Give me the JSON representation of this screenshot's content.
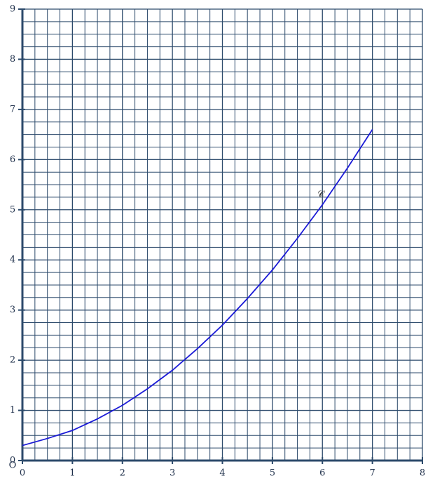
{
  "chart_data": {
    "type": "line",
    "origin_label": "O",
    "curve_label": "𝒞",
    "x": [
      0,
      0.5,
      1,
      1.5,
      2,
      2.5,
      3,
      3.5,
      4,
      4.5,
      5,
      5.5,
      6,
      6.5,
      7
    ],
    "values": [
      0.3,
      0.44,
      0.6,
      0.83,
      1.1,
      1.43,
      1.8,
      2.23,
      2.7,
      3.23,
      3.8,
      4.43,
      5.1,
      5.83,
      6.6
    ],
    "color": "#1a1ad6",
    "xlim": [
      0,
      8
    ],
    "ylim": [
      0,
      9
    ],
    "xticks": [
      0,
      1,
      2,
      3,
      4,
      5,
      6,
      7,
      8
    ],
    "yticks": [
      0,
      1,
      2,
      3,
      4,
      5,
      6,
      7,
      8,
      9
    ],
    "grid": true,
    "minor_divisions": 4
  }
}
